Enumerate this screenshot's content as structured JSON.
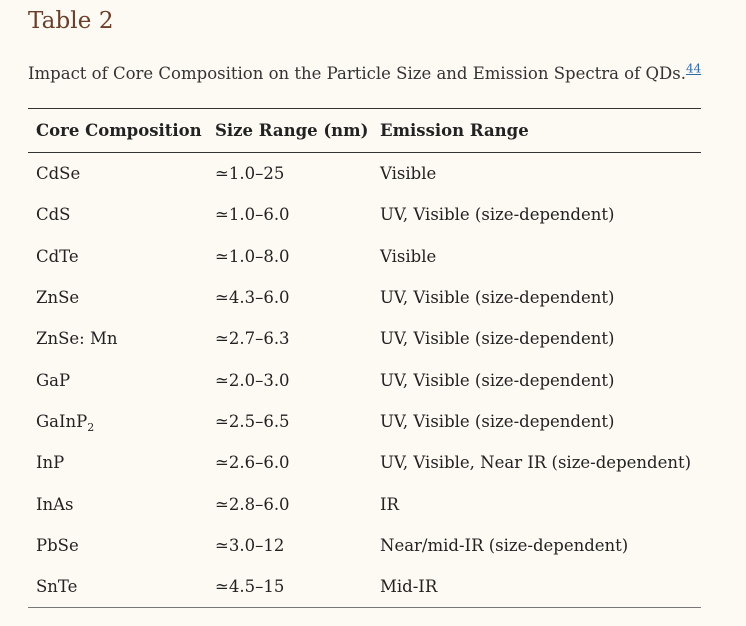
{
  "table_label": "Table 2",
  "caption": {
    "text": "Impact of Core Composition on the Particle Size and Emission Spectra of QDs.",
    "ref": "44"
  },
  "table": {
    "headers": [
      "Core Composition",
      "Size Range (nm)",
      "Emission Range"
    ],
    "rows": [
      {
        "core": "CdSe",
        "core_sub": "",
        "size": "≃1.0–25",
        "emission": "Visible"
      },
      {
        "core": "CdS",
        "core_sub": "",
        "size": "≃1.0–6.0",
        "emission": "UV, Visible (size-dependent)"
      },
      {
        "core": "CdTe",
        "core_sub": "",
        "size": "≃1.0–8.0",
        "emission": "Visible"
      },
      {
        "core": "ZnSe",
        "core_sub": "",
        "size": "≃4.3–6.0",
        "emission": "UV, Visible (size-dependent)"
      },
      {
        "core": "ZnSe: Mn",
        "core_sub": "",
        "size": "≃2.7–6.3",
        "emission": "UV, Visible (size-dependent)"
      },
      {
        "core": "GaP",
        "core_sub": "",
        "size": "≃2.0–3.0",
        "emission": "UV, Visible (size-dependent)"
      },
      {
        "core": "GaInP",
        "core_sub": "2",
        "size": "≃2.5–6.5",
        "emission": "UV, Visible (size-dependent)"
      },
      {
        "core": "InP",
        "core_sub": "",
        "size": "≃2.6–6.0",
        "emission": "UV, Visible, Near IR (size-dependent)"
      },
      {
        "core": "InAs",
        "core_sub": "",
        "size": "≃2.8–6.0",
        "emission": "IR"
      },
      {
        "core": "PbSe",
        "core_sub": "",
        "size": "≃3.0–12",
        "emission": "Near/mid-IR (size-dependent)"
      },
      {
        "core": "SnTe",
        "core_sub": "",
        "size": "≃4.5–15",
        "emission": "Mid-IR"
      }
    ]
  }
}
